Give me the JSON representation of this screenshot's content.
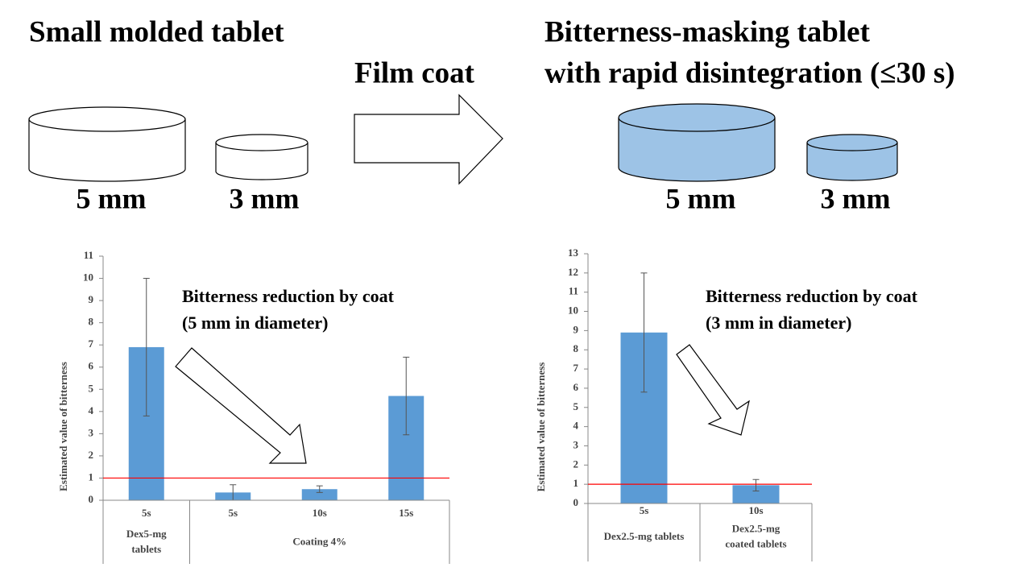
{
  "slide": {
    "left_title": "Small molded tablet",
    "arrow_label": "Film coat",
    "right_title": [
      "Bitterness-masking tablet",
      "with rapid disintegration (≤30 s)"
    ],
    "left_sizes": [
      "5 mm",
      "3 mm"
    ],
    "right_sizes": [
      "5 mm",
      "3 mm"
    ]
  },
  "chart_data": [
    {
      "type": "bar",
      "y_label": "Estimated value of bitterness",
      "annotation": [
        "Bitterness reduction by coat",
        "(5 mm in diameter)"
      ],
      "categories": [
        "5s",
        "5s",
        "10s",
        "15s"
      ],
      "groups": [
        {
          "label": [
            "Dex5-mg",
            "tablets"
          ],
          "size": 1
        },
        {
          "label": [
            "Coating 4%"
          ],
          "size": 3
        }
      ],
      "values": [
        6.9,
        0.35,
        0.5,
        4.7
      ],
      "errors": [
        3.1,
        0.35,
        0.15,
        1.75
      ],
      "color": "#5b9bd5",
      "ref_line": 1,
      "ref_color": "#ff0000",
      "ylim": [
        0,
        11
      ],
      "yticks": [
        0,
        1,
        2,
        3,
        4,
        5,
        6,
        7,
        8,
        9,
        10,
        11
      ]
    },
    {
      "type": "bar",
      "y_label": "Estimated value of bitterness",
      "annotation": [
        "Bitterness reduction by coat",
        "(3 mm in diameter)"
      ],
      "categories": [
        "5s",
        "10s"
      ],
      "groups": [
        {
          "label": [
            "Dex2.5-mg tablets"
          ],
          "size": 1
        },
        {
          "label": [
            "Dex2.5-mg",
            "coated tablets"
          ],
          "size": 1
        }
      ],
      "values": [
        8.9,
        0.95
      ],
      "errors": [
        3.1,
        0.3
      ],
      "color": "#5b9bd5",
      "ref_line": 1,
      "ref_color": "#ff0000",
      "ylim": [
        0,
        13
      ],
      "yticks": [
        0,
        1,
        2,
        3,
        4,
        5,
        6,
        7,
        8,
        9,
        10,
        11,
        12,
        13
      ]
    }
  ]
}
